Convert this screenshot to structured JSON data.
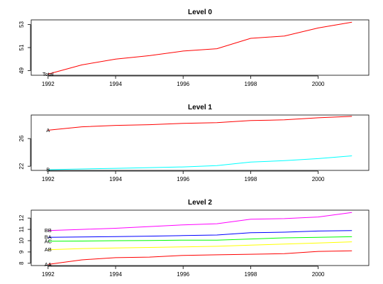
{
  "chart_data": [
    {
      "type": "line",
      "title": "Level 0",
      "xlabel": "",
      "ylabel": "",
      "x": [
        1992,
        1993,
        1994,
        1995,
        1996,
        1997,
        1998,
        1999,
        2000,
        2001
      ],
      "xticks": [
        1992,
        1994,
        1996,
        1998,
        2000
      ],
      "xlim": [
        1991.5,
        2001.5
      ],
      "yticks": [
        49,
        51,
        53
      ],
      "ylim": [
        48.6,
        53.4
      ],
      "series": [
        {
          "name": "Total",
          "color": "#ff0000",
          "values": [
            48.7,
            49.5,
            50.0,
            50.3,
            50.7,
            50.9,
            51.8,
            52.0,
            52.7,
            53.2
          ]
        }
      ]
    },
    {
      "type": "line",
      "title": "Level 1",
      "xlabel": "",
      "ylabel": "",
      "x": [
        1992,
        1993,
        1994,
        1995,
        1996,
        1997,
        1998,
        1999,
        2000,
        2001
      ],
      "xticks": [
        1992,
        1994,
        1996,
        1998,
        2000
      ],
      "xlim": [
        1991.5,
        2001.5
      ],
      "yticks": [
        22,
        26
      ],
      "ylim": [
        21.4,
        29.4
      ],
      "series": [
        {
          "name": "A",
          "color": "#ff0000",
          "values": [
            27.2,
            27.7,
            27.9,
            28.0,
            28.2,
            28.3,
            28.6,
            28.7,
            29.0,
            29.2
          ]
        },
        {
          "name": "B",
          "color": "#00ffff",
          "values": [
            21.5,
            21.6,
            21.7,
            21.8,
            21.9,
            22.1,
            22.6,
            22.8,
            23.1,
            23.5
          ]
        }
      ]
    },
    {
      "type": "line",
      "title": "Level 2",
      "xlabel": "",
      "ylabel": "",
      "x": [
        1992,
        1993,
        1994,
        1995,
        1996,
        1997,
        1998,
        1999,
        2000,
        2001
      ],
      "xticks": [
        1992,
        1994,
        1996,
        1998,
        2000
      ],
      "xlim": [
        1991.5,
        2001.5
      ],
      "yticks": [
        8,
        9,
        10,
        11,
        12
      ],
      "ylim": [
        7.8,
        12.7
      ],
      "series": [
        {
          "name": "AA",
          "color": "#ff0000",
          "values": [
            7.9,
            8.3,
            8.5,
            8.55,
            8.7,
            8.75,
            8.8,
            8.85,
            9.05,
            9.1
          ]
        },
        {
          "name": "AB",
          "color": "#ffff00",
          "values": [
            9.2,
            9.3,
            9.35,
            9.4,
            9.45,
            9.5,
            9.6,
            9.7,
            9.8,
            9.9
          ]
        },
        {
          "name": "AC",
          "color": "#00ff00",
          "values": [
            9.95,
            9.97,
            10.0,
            10.02,
            10.05,
            10.05,
            10.15,
            10.25,
            10.3,
            10.35
          ]
        },
        {
          "name": "BA",
          "color": "#0000ff",
          "values": [
            10.3,
            10.33,
            10.36,
            10.4,
            10.45,
            10.5,
            10.7,
            10.75,
            10.85,
            10.9
          ]
        },
        {
          "name": "BB",
          "color": "#ff00ff",
          "values": [
            10.9,
            11.0,
            11.1,
            11.25,
            11.4,
            11.5,
            11.9,
            11.95,
            12.1,
            12.5
          ]
        }
      ]
    }
  ]
}
